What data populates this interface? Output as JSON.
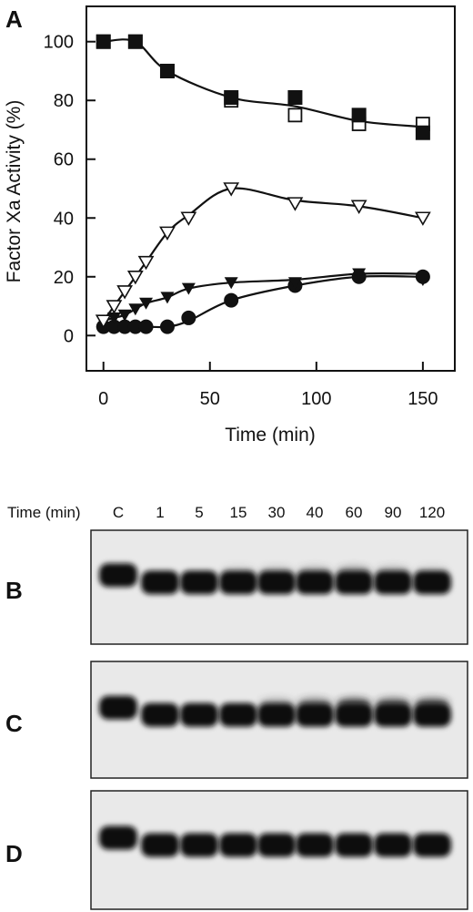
{
  "chart_data": {
    "type": "line",
    "panel_label": "A",
    "xlabel": "Time (min)",
    "ylabel": "Factor Xa Activity (%)",
    "xlim": [
      -8,
      165
    ],
    "ylim": [
      -12,
      112
    ],
    "xticks": [
      0,
      50,
      100,
      150
    ],
    "yticks": [
      0,
      20,
      40,
      60,
      80,
      100
    ],
    "grid": false,
    "legend": "none",
    "series": [
      {
        "marker": "filled-square",
        "x": [
          0,
          15,
          30,
          60,
          90,
          120,
          150
        ],
        "y": [
          100,
          100,
          90,
          81,
          81,
          75,
          69
        ]
      },
      {
        "marker": "open-square",
        "x": [
          0,
          15,
          30,
          60,
          90,
          120,
          150
        ],
        "y": [
          100,
          100,
          90,
          80,
          75,
          72,
          72
        ]
      },
      {
        "marker": "open-triangle-down",
        "x": [
          0,
          5,
          10,
          15,
          20,
          30,
          40,
          60,
          90,
          120,
          150
        ],
        "y": [
          5,
          10,
          15,
          20,
          25,
          35,
          40,
          50,
          45,
          44,
          40
        ]
      },
      {
        "marker": "filled-triangle-down",
        "x": [
          0,
          5,
          10,
          15,
          20,
          30,
          40,
          60,
          90,
          120,
          150
        ],
        "y": [
          5,
          6,
          7,
          9,
          11,
          13,
          16,
          18,
          18,
          21,
          19
        ]
      },
      {
        "marker": "filled-circle",
        "x": [
          0,
          5,
          10,
          15,
          20,
          30,
          40,
          60,
          90,
          120,
          150
        ],
        "y": [
          3,
          3,
          3,
          3,
          3,
          3,
          6,
          12,
          17,
          20,
          20
        ]
      }
    ],
    "curves": [
      {
        "x": [
          0,
          15,
          30,
          60,
          90,
          120,
          150
        ],
        "y": [
          100,
          100,
          90,
          81,
          78,
          73,
          71
        ]
      },
      {
        "x": [
          0,
          5,
          10,
          15,
          20,
          30,
          40,
          60,
          90,
          120,
          150
        ],
        "y": [
          5,
          10,
          15,
          20,
          25,
          35,
          41,
          50,
          46,
          44,
          40
        ]
      },
      {
        "x": [
          0,
          5,
          10,
          15,
          20,
          30,
          40,
          60,
          90,
          120,
          150
        ],
        "y": [
          5,
          6,
          7,
          9,
          11,
          13,
          16,
          18,
          19,
          21,
          21
        ]
      },
      {
        "x": [
          0,
          5,
          10,
          15,
          20,
          30,
          40,
          60,
          90,
          120,
          150
        ],
        "y": [
          3,
          3,
          3,
          3,
          3,
          3,
          5,
          12,
          17,
          20,
          20
        ]
      }
    ]
  },
  "blots": {
    "time_header": "Time (min)",
    "lanes": [
      "C",
      "1",
      "5",
      "15",
      "30",
      "40",
      "60",
      "90",
      "120"
    ],
    "panels": [
      {
        "label": "B",
        "smear": [
          0,
          0,
          0,
          0.1,
          0.15,
          0.2,
          0.3,
          0.2,
          0.1
        ]
      },
      {
        "label": "C",
        "smear": [
          0,
          0,
          0,
          0,
          0.25,
          0.45,
          0.7,
          0.6,
          0.65
        ]
      },
      {
        "label": "D",
        "smear": [
          0,
          0,
          0,
          0,
          0,
          0,
          0,
          0,
          0
        ]
      }
    ]
  }
}
